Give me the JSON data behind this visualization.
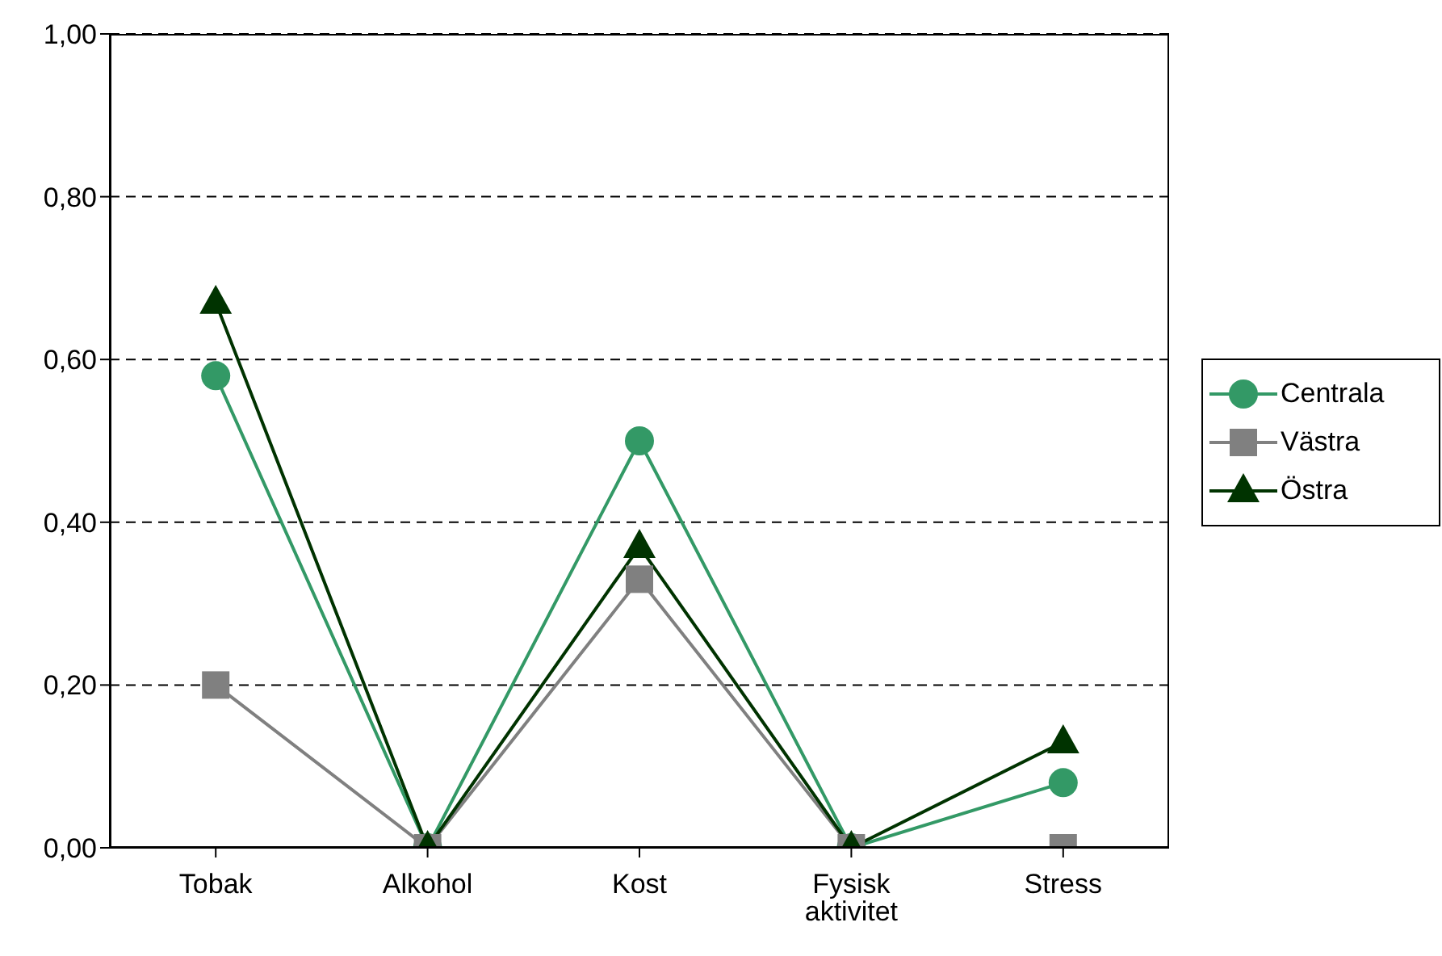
{
  "chart_data": {
    "type": "line",
    "categories": [
      "Tobak",
      "Alkohol",
      "Kost",
      "Fysisk aktivitet",
      "Stress"
    ],
    "series": [
      {
        "name": "Centrala",
        "color": "#339966",
        "marker": "circle",
        "values": [
          0.58,
          0,
          0.5,
          0,
          0.08
        ]
      },
      {
        "name": "Västra",
        "color": "#808080",
        "marker": "square",
        "values": [
          0.2,
          0,
          0.33,
          0,
          0
        ]
      },
      {
        "name": "Östra",
        "color": "#003300",
        "marker": "triangle",
        "values": [
          0.67,
          0,
          0.37,
          0,
          0.13
        ]
      }
    ],
    "ylim": [
      0,
      1
    ],
    "yticks": [
      {
        "value": 0,
        "label": "0,00"
      },
      {
        "value": 0.2,
        "label": "0,20"
      },
      {
        "value": 0.4,
        "label": "0,40"
      },
      {
        "value": 0.6,
        "label": "0,60"
      },
      {
        "value": 0.8,
        "label": "0,80"
      },
      {
        "value": 1,
        "label": "1,00"
      }
    ],
    "grid": "y",
    "legend": "right",
    "line_style": "solid"
  }
}
